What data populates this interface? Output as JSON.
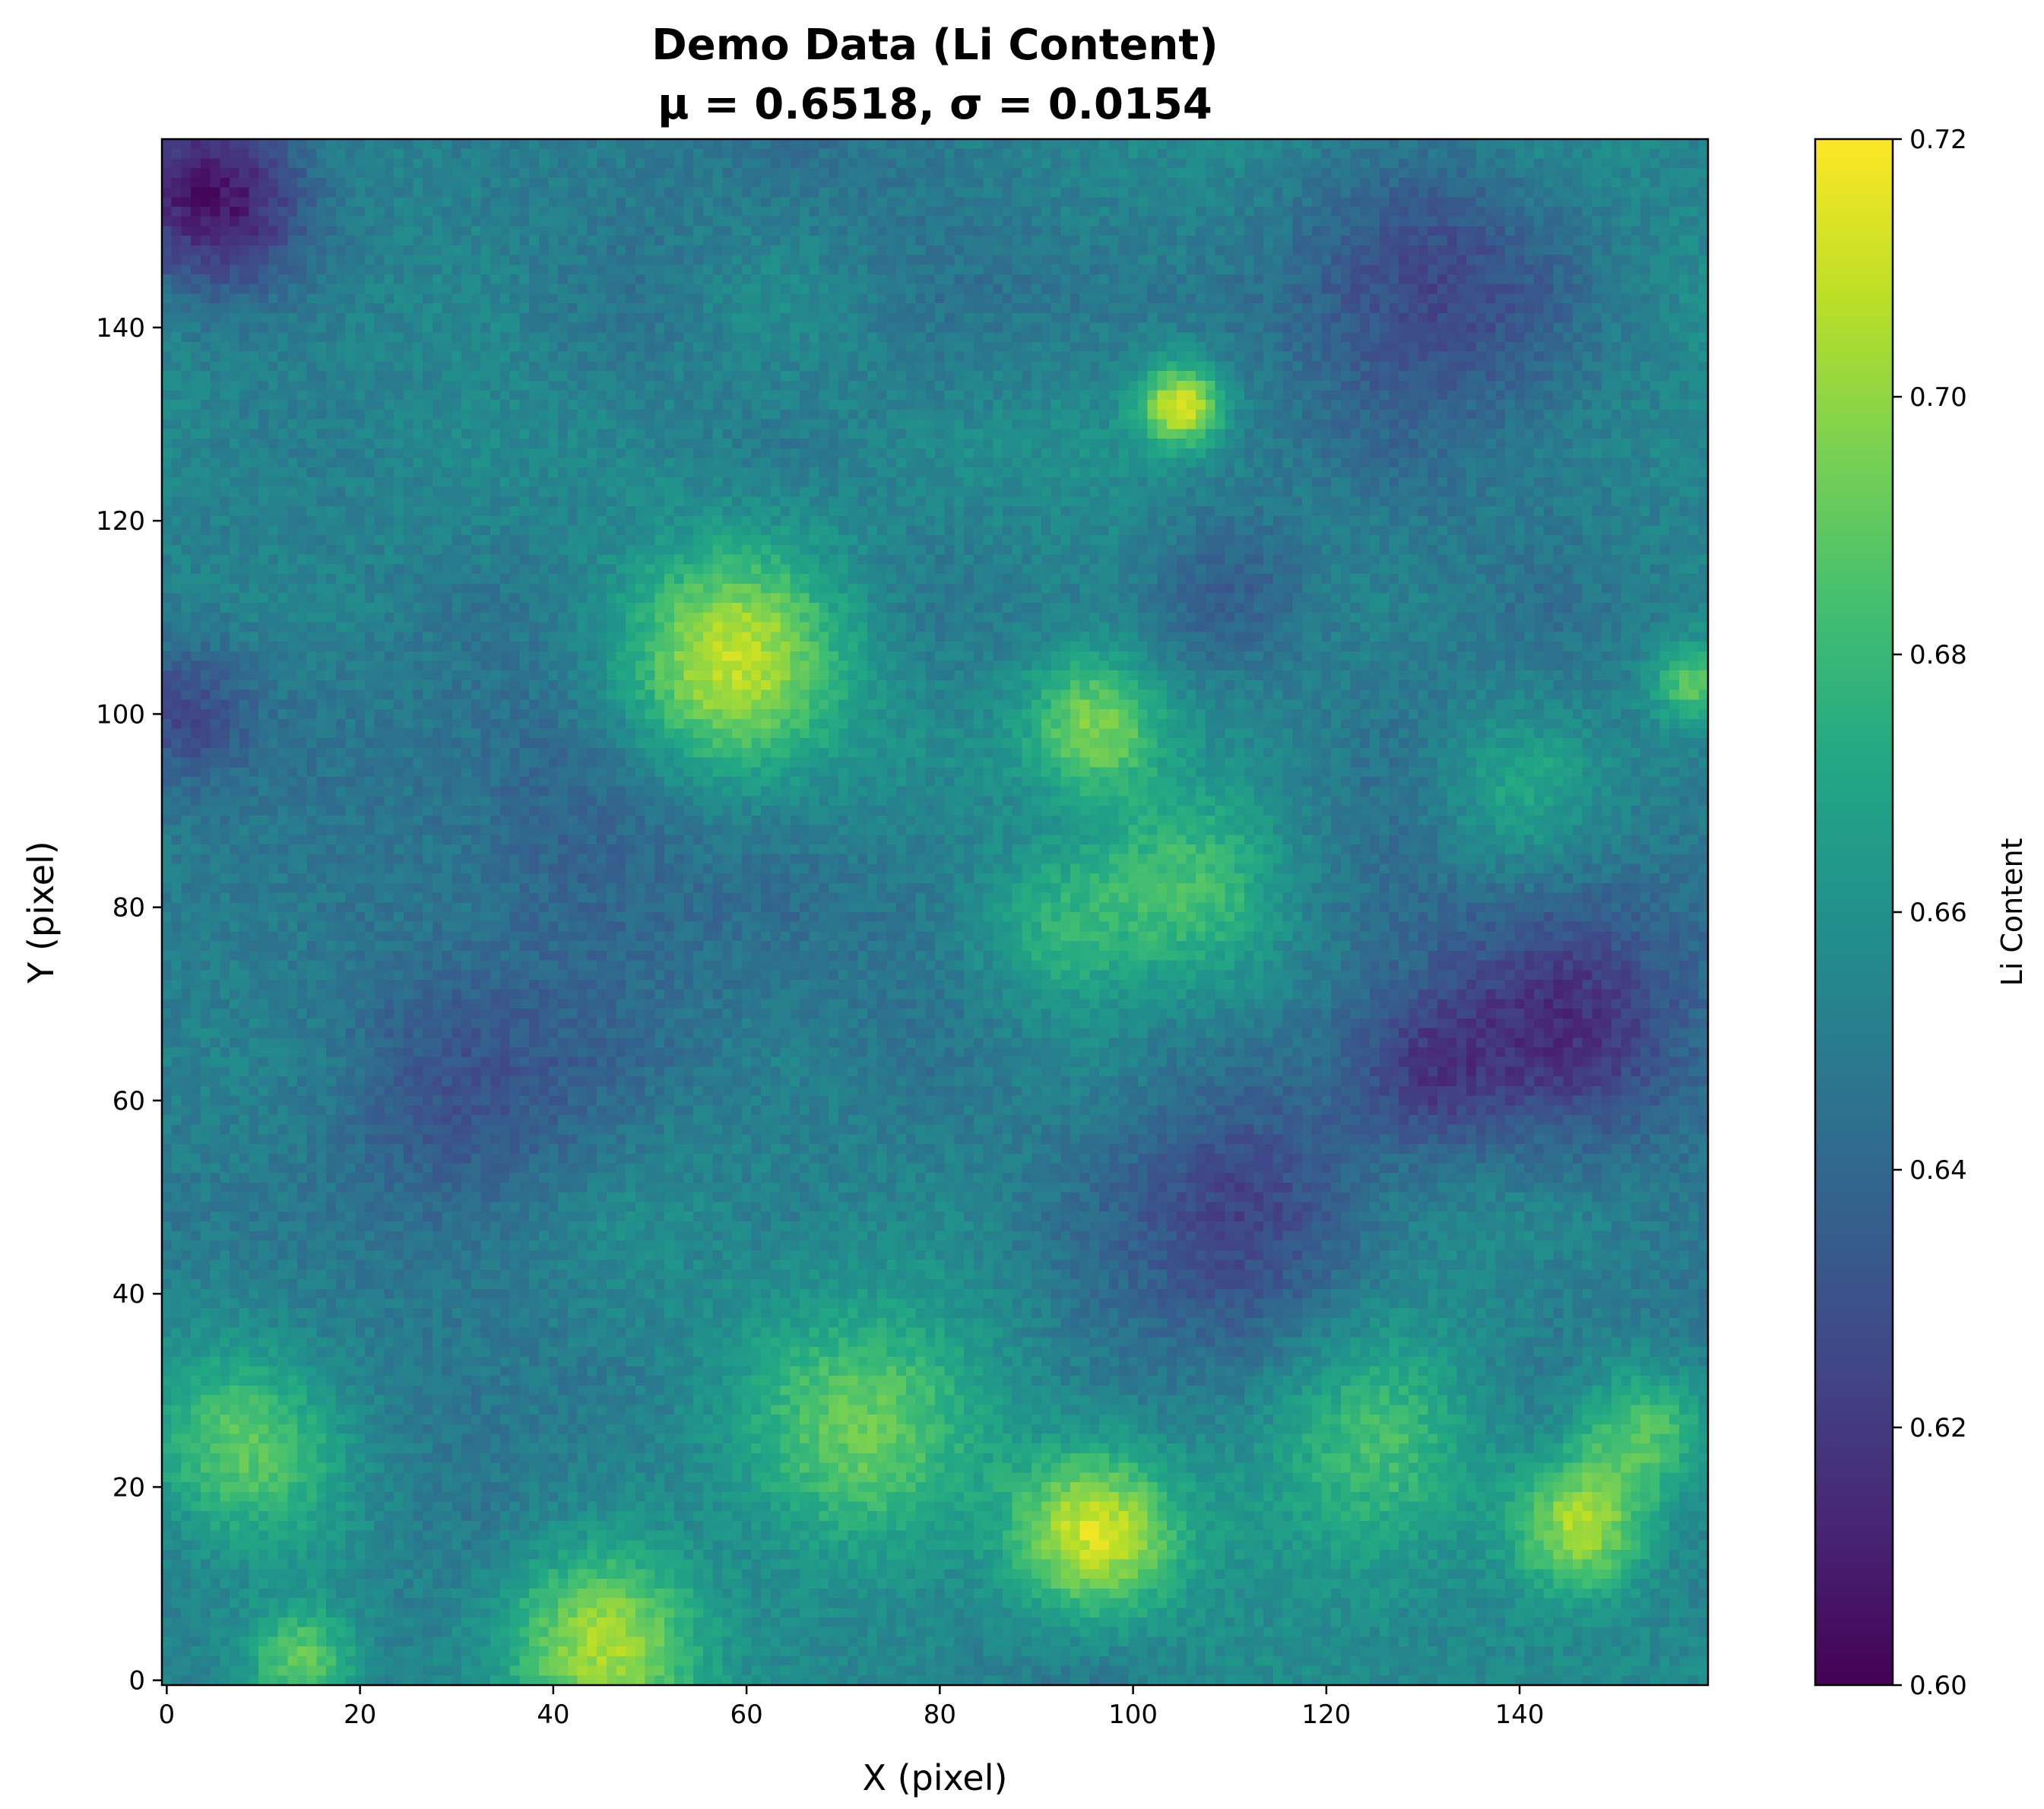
{
  "chart_data": {
    "type": "heatmap",
    "title": "Demo Data (Li Content)",
    "subtitle": "μ = 0.6518, σ = 0.0154",
    "xlabel": "X (pixel)",
    "ylabel": "Y (pixel)",
    "colorbar_label": "Li Content",
    "colormap": "viridis",
    "grid_size": [
      160,
      160
    ],
    "xlim": [
      -0.5,
      159.5
    ],
    "ylim": [
      -0.5,
      159.5
    ],
    "clim": [
      0.6,
      0.72
    ],
    "mean": 0.6518,
    "std": 0.0154,
    "x_ticks": [
      0,
      20,
      40,
      60,
      80,
      100,
      120,
      140
    ],
    "y_ticks": [
      0,
      20,
      40,
      60,
      80,
      100,
      120,
      140
    ],
    "x_tick_labels": [
      "0",
      "20",
      "40",
      "60",
      "80",
      "100",
      "120",
      "140"
    ],
    "y_tick_labels": [
      "0",
      "20",
      "40",
      "60",
      "80",
      "100",
      "120",
      "140"
    ],
    "colorbar_ticks": [
      0.6,
      0.62,
      0.64,
      0.66,
      0.68,
      0.7,
      0.72
    ],
    "colorbar_tick_labels": [
      "0.60",
      "0.62",
      "0.64",
      "0.66",
      "0.68",
      "0.70",
      "0.72"
    ],
    "features": [
      {
        "x": 5,
        "y": 153,
        "value": 0.605,
        "sigma": 7
      },
      {
        "x": 58,
        "y": 105,
        "value": 0.708,
        "sigma": 8
      },
      {
        "x": 105,
        "y": 132,
        "value": 0.713,
        "sigma": 3
      },
      {
        "x": 96,
        "y": 99,
        "value": 0.694,
        "sigma": 5
      },
      {
        "x": 96,
        "y": 15,
        "value": 0.708,
        "sigma": 6
      },
      {
        "x": 146,
        "y": 16,
        "value": 0.708,
        "sigma": 5
      },
      {
        "x": 45,
        "y": 4,
        "value": 0.698,
        "sigma": 7
      },
      {
        "x": 72,
        "y": 24,
        "value": 0.69,
        "sigma": 9
      },
      {
        "x": 8,
        "y": 24,
        "value": 0.688,
        "sigma": 7
      },
      {
        "x": 14,
        "y": 2,
        "value": 0.692,
        "sigma": 4
      },
      {
        "x": 105,
        "y": 82,
        "value": 0.683,
        "sigma": 7
      },
      {
        "x": 92,
        "y": 78,
        "value": 0.678,
        "sigma": 6
      },
      {
        "x": 158,
        "y": 103,
        "value": 0.688,
        "sigma": 3
      },
      {
        "x": 145,
        "y": 68,
        "value": 0.62,
        "sigma": 9
      },
      {
        "x": 130,
        "y": 145,
        "value": 0.622,
        "sigma": 10
      },
      {
        "x": 112,
        "y": 48,
        "value": 0.625,
        "sigma": 10
      },
      {
        "x": 30,
        "y": 62,
        "value": 0.628,
        "sigma": 10
      },
      {
        "x": 130,
        "y": 63,
        "value": 0.625,
        "sigma": 6
      },
      {
        "x": 125,
        "y": 25,
        "value": 0.678,
        "sigma": 8
      },
      {
        "x": 153,
        "y": 26,
        "value": 0.69,
        "sigma": 5
      },
      {
        "x": 40,
        "y": 90,
        "value": 0.636,
        "sigma": 12
      },
      {
        "x": 140,
        "y": 92,
        "value": 0.672,
        "sigma": 6
      },
      {
        "x": 2,
        "y": 100,
        "value": 0.628,
        "sigma": 5
      },
      {
        "x": 110,
        "y": 112,
        "value": 0.63,
        "sigma": 6
      }
    ]
  }
}
